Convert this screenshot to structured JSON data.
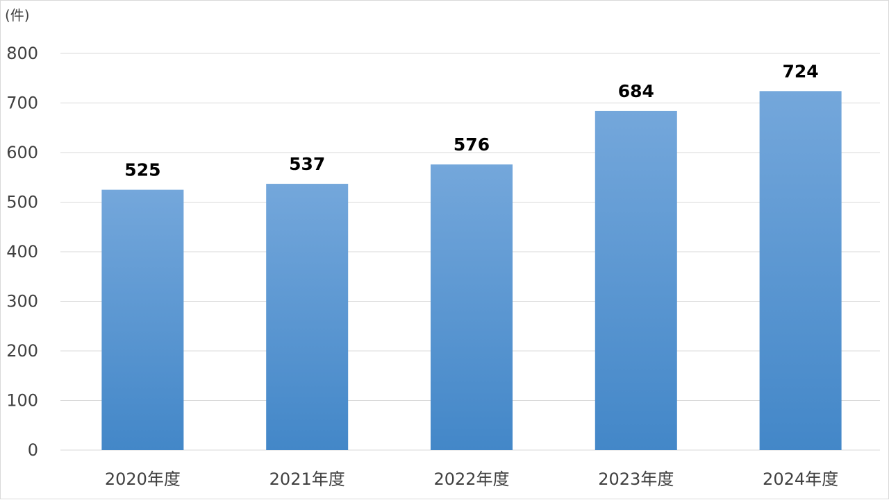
{
  "chart_data": {
    "type": "bar",
    "unit_label": "(件)",
    "categories": [
      "2020年度",
      "2021年度",
      "2022年度",
      "2023年度",
      "2024年度"
    ],
    "values": [
      525,
      537,
      576,
      684,
      724
    ],
    "data_labels": [
      "525",
      "537",
      "576",
      "684",
      "724"
    ],
    "ylim": [
      0,
      800
    ],
    "yticks": [
      0,
      100,
      200,
      300,
      400,
      500,
      600,
      700,
      800
    ],
    "ytick_labels": [
      "0",
      "100",
      "200",
      "300",
      "400",
      "500",
      "600",
      "700",
      "800"
    ],
    "grid": true,
    "legend": false,
    "colors": {
      "bar_top": "#74a7db",
      "bar_bottom": "#4387c8",
      "grid": "#d9d9d9",
      "axis_text": "#404040",
      "data_label": "#000000"
    }
  }
}
